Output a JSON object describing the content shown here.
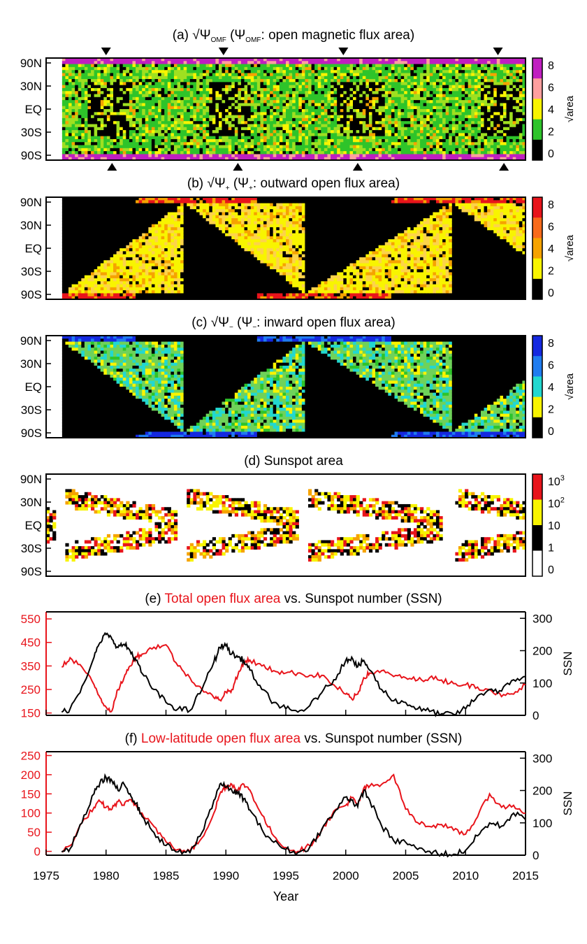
{
  "colors": {
    "black": "#000000",
    "red": "#e8141b",
    "green": "#2ec42a",
    "yellow": "#f8f400",
    "orange": "#f6a300",
    "magenta": "#c01fc0",
    "cyan": "#22d8d0",
    "blue": "#1428e0",
    "pink": "#ff9f9f"
  },
  "panels": {
    "a": {
      "title": "(a) √Ψ",
      "title_sub": "OMF",
      "title_rest": " (Ψ",
      "title_rest_sub": "OMF",
      "title_end": ": open magnetic flux area)",
      "lat_labels": [
        "90N",
        "30N",
        "EQ",
        "30S",
        "90S"
      ],
      "cbar_ticks": [
        "8",
        "6",
        "4",
        "2",
        "0"
      ],
      "cbar_label": "√area"
    },
    "b": {
      "title": "(b) √Ψ",
      "title_sub": "+",
      "title_rest": " (Ψ",
      "title_rest_sub": "+",
      "title_end": ": outward open flux area)",
      "lat_labels": [
        "90N",
        "30N",
        "EQ",
        "30S",
        "90S"
      ],
      "cbar_ticks": [
        "8",
        "6",
        "4",
        "2",
        "0"
      ],
      "cbar_label": "√area"
    },
    "c": {
      "title": "(c) √Ψ",
      "title_sub": "−",
      "title_rest": " (Ψ",
      "title_rest_sub": "−",
      "title_end": ": inward open flux area)",
      "lat_labels": [
        "90N",
        "30N",
        "EQ",
        "30S",
        "90S"
      ],
      "cbar_ticks": [
        "8",
        "6",
        "4",
        "2",
        "0"
      ],
      "cbar_label": "√area"
    },
    "d": {
      "title": "(d) Sunspot area",
      "lat_labels": [
        "90N",
        "30N",
        "EQ",
        "30S",
        "90S"
      ],
      "cbar_ticks": [
        "10",
        "10",
        "10",
        "1",
        "0"
      ],
      "cbar_sup": [
        "3",
        "2",
        ""
      ]
    },
    "e": {
      "title_prefix": "(e) ",
      "title_red": "Total open flux area",
      "title_suffix": " vs. Sunspot number (SSN)",
      "left_ticks": [
        "550",
        "450",
        "350",
        "250",
        "150"
      ],
      "right_ticks": [
        "300",
        "200",
        "100",
        "0"
      ],
      "right_label": "SSN"
    },
    "f": {
      "title_prefix": "(f) ",
      "title_red": "Low-latitude open flux area",
      "title_suffix": " vs. Sunspot number (SSN)",
      "left_ticks": [
        "250",
        "200",
        "150",
        "100",
        "50",
        "0"
      ],
      "right_ticks": [
        "300",
        "200",
        "100",
        "0"
      ],
      "right_label": "SSN",
      "x_ticks": [
        "1975",
        "1980",
        "1985",
        "1990",
        "1995",
        "2000",
        "2005",
        "2010",
        "2015"
      ],
      "xlabel": "Year"
    }
  },
  "chart_data": [
    {
      "type": "heatmap",
      "panel": "a",
      "x_range": [
        1975,
        2015
      ],
      "y_categories": [
        "90N",
        "30N",
        "EQ",
        "30S",
        "90S"
      ],
      "colorbar_range": [
        0,
        8
      ],
      "polarity_reversal_markers_top": [
        1980.0,
        1989.8,
        1999.8,
        2012.7
      ],
      "polarity_reversal_markers_bottom": [
        1980.5,
        1991.0,
        2001.0,
        2013.2
      ]
    },
    {
      "type": "heatmap",
      "panel": "b",
      "x_range": [
        1975,
        2015
      ],
      "y_categories": [
        "90N",
        "30N",
        "EQ",
        "30S",
        "90S"
      ],
      "colorbar_range": [
        0,
        8
      ]
    },
    {
      "type": "heatmap",
      "panel": "c",
      "x_range": [
        1975,
        2015
      ],
      "y_categories": [
        "90N",
        "30N",
        "EQ",
        "30S",
        "90S"
      ],
      "colorbar_range": [
        0,
        8
      ]
    },
    {
      "type": "heatmap",
      "panel": "d",
      "x_range": [
        1975,
        2015
      ],
      "y_categories": [
        "90N",
        "30N",
        "EQ",
        "30S",
        "90S"
      ],
      "colorbar_levels": [
        "0",
        "1",
        "10",
        "10^2",
        "10^3"
      ]
    },
    {
      "type": "line",
      "panel": "e",
      "xlim": [
        1975,
        2015
      ],
      "ylim_left": [
        140,
        580
      ],
      "ylim_right": [
        0,
        320
      ],
      "x": [
        1976.3,
        1977,
        1978,
        1979,
        1979.5,
        1980,
        1980.5,
        1981,
        1981.5,
        1982,
        1982.5,
        1983,
        1984,
        1985,
        1986,
        1987,
        1988,
        1989,
        1989.5,
        1990,
        1990.5,
        1991,
        1991.5,
        1992,
        1993,
        1994,
        1995,
        1996,
        1997,
        1998,
        1999,
        2000,
        2000.5,
        2001,
        2001.5,
        2002,
        2003,
        2004,
        2005,
        2006,
        2007,
        2008,
        2009,
        2010,
        2011,
        2012,
        2013,
        2014,
        2015
      ],
      "series": [
        {
          "axis": "left",
          "values": [
            345,
            385,
            345,
            270,
            215,
            175,
            160,
            250,
            300,
            350,
            390,
            400,
            430,
            440,
            350,
            300,
            250,
            215,
            205,
            240,
            250,
            310,
            370,
            375,
            350,
            330,
            320,
            320,
            310,
            310,
            270,
            230,
            210,
            230,
            300,
            320,
            330,
            305,
            300,
            290,
            300,
            290,
            275,
            270,
            260,
            250,
            220,
            230,
            270
          ]
        },
        {
          "axis": "right",
          "values": [
            10,
            20,
            90,
            180,
            225,
            250,
            235,
            210,
            220,
            200,
            170,
            130,
            80,
            40,
            20,
            15,
            80,
            165,
            210,
            215,
            190,
            180,
            170,
            140,
            80,
            40,
            20,
            10,
            30,
            70,
            110,
            170,
            180,
            150,
            170,
            140,
            80,
            45,
            40,
            20,
            12,
            5,
            3,
            20,
            60,
            80,
            75,
            110,
            120
          ]
        }
      ]
    },
    {
      "type": "line",
      "panel": "f",
      "xlim": [
        1975,
        2015
      ],
      "ylim_left": [
        -10,
        260
      ],
      "ylim_right": [
        0,
        320
      ],
      "x": [
        1976.3,
        1977,
        1978,
        1979,
        1979.5,
        1980,
        1980.5,
        1981,
        1981.5,
        1982,
        1982.5,
        1983,
        1984,
        1985,
        1986,
        1987,
        1988,
        1989,
        1989.5,
        1990,
        1990.5,
        1991,
        1991.5,
        1992,
        1993,
        1994,
        1995,
        1996,
        1997,
        1998,
        1999,
        2000,
        2000.5,
        2001,
        2001.5,
        2002,
        2003,
        2004,
        2005,
        2006,
        2007,
        2008,
        2009,
        2010,
        2011,
        2012,
        2013,
        2014,
        2015
      ],
      "series": [
        {
          "axis": "left",
          "values": [
            0,
            15,
            75,
            115,
            130,
            115,
            110,
            130,
            120,
            135,
            120,
            100,
            65,
            25,
            5,
            0,
            35,
            100,
            150,
            170,
            175,
            160,
            175,
            160,
            95,
            40,
            10,
            0,
            15,
            55,
            105,
            120,
            140,
            120,
            165,
            170,
            175,
            200,
            110,
            75,
            65,
            70,
            55,
            45,
            90,
            150,
            115,
            120,
            100
          ]
        },
        {
          "axis": "right",
          "values": [
            10,
            20,
            100,
            190,
            225,
            240,
            230,
            200,
            220,
            190,
            160,
            120,
            70,
            30,
            10,
            8,
            70,
            170,
            220,
            210,
            200,
            190,
            175,
            140,
            80,
            40,
            18,
            8,
            25,
            80,
            130,
            180,
            170,
            150,
            200,
            170,
            90,
            45,
            40,
            18,
            12,
            5,
            3,
            15,
            60,
            100,
            90,
            130,
            110
          ]
        }
      ]
    }
  ]
}
